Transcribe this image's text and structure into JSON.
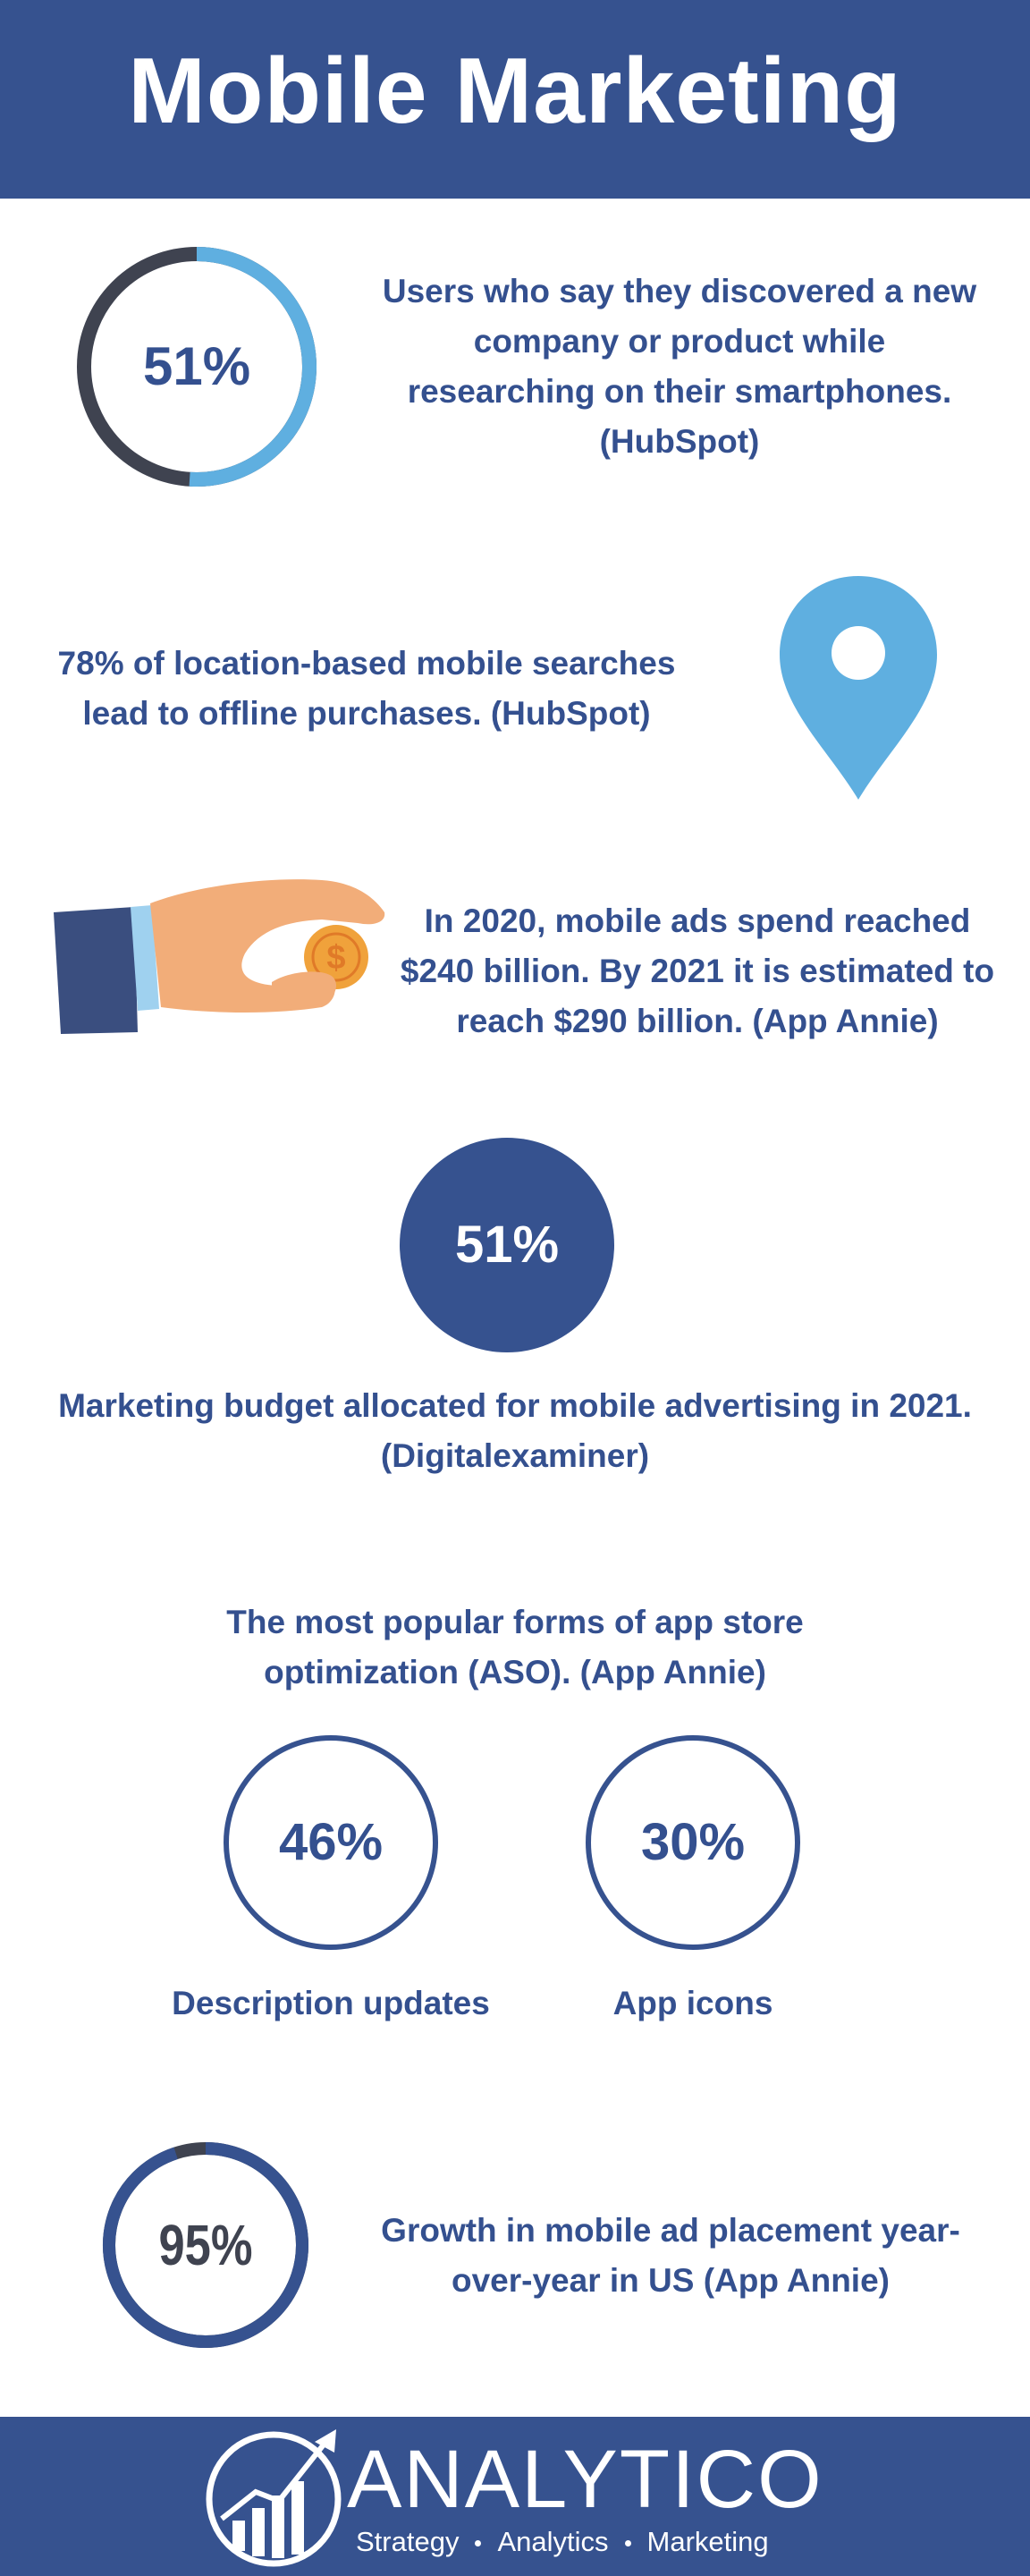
{
  "header": {
    "title": "Mobile Marketing"
  },
  "stats": {
    "discovery": {
      "percent_label": "51%",
      "percent": 51,
      "line1": "Users who say they discovered a new",
      "line2": "company or product while",
      "line3": "researching on their smartphones.",
      "line4": "(HubSpot)"
    },
    "location": {
      "line1": "78% of location-based mobile searches",
      "line2": "lead to offline purchases. (HubSpot)"
    },
    "ad_spend": {
      "line1": "In 2020, mobile ads spend reached",
      "line2": "$240 billion. By 2021 it is estimated to",
      "line3": "reach $290 billion. (App Annie)"
    },
    "budget": {
      "percent_label": "51%",
      "line1": "Marketing budget allocated for mobile advertising in 2021.",
      "line2": "(Digitalexaminer)"
    },
    "aso": {
      "line1": "The most popular forms of app store",
      "line2": "optimization (ASO). (App Annie)",
      "items": [
        {
          "percent_label": "46%",
          "label": "Description updates"
        },
        {
          "percent_label": "30%",
          "label": "App icons"
        }
      ]
    },
    "growth": {
      "percent_label": "95%",
      "percent": 95,
      "line1": "Growth in mobile ad placement year-",
      "line2": "over-year in US (App Annie)"
    }
  },
  "footer": {
    "brand": "ANALYTICO",
    "tagline": [
      "Strategy",
      "Analytics",
      "Marketing"
    ]
  },
  "colors": {
    "navy": "#36528f",
    "text": "#34508f",
    "light_blue": "#5fafe0",
    "dark_gray": "#3f4350",
    "skin": "#f2ad79",
    "coin": "#f0a23b"
  },
  "icons": [
    "location-pin-icon",
    "hand-coin-icon",
    "dollar-coin-icon",
    "growth-chart-logo-icon"
  ]
}
